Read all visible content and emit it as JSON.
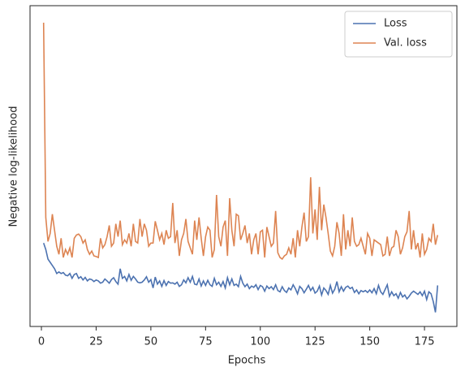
{
  "chart_data": {
    "type": "line",
    "xlabel": "Epochs",
    "ylabel": "Negative log-likelihood",
    "x": [
      1,
      2,
      3,
      4,
      5,
      6,
      7,
      8,
      9,
      10,
      11,
      12,
      13,
      14,
      15,
      16,
      17,
      18,
      19,
      20,
      21,
      22,
      23,
      24,
      25,
      26,
      27,
      28,
      29,
      30,
      31,
      32,
      33,
      34,
      35,
      36,
      37,
      38,
      39,
      40,
      41,
      42,
      43,
      44,
      45,
      46,
      47,
      48,
      49,
      50,
      51,
      52,
      53,
      54,
      55,
      56,
      57,
      58,
      59,
      60,
      61,
      62,
      63,
      64,
      65,
      66,
      67,
      68,
      69,
      70,
      71,
      72,
      73,
      74,
      75,
      76,
      77,
      78,
      79,
      80,
      81,
      82,
      83,
      84,
      85,
      86,
      87,
      88,
      89,
      90,
      91,
      92,
      93,
      94,
      95,
      96,
      97,
      98,
      99,
      100,
      101,
      102,
      103,
      104,
      105,
      106,
      107,
      108,
      109,
      110,
      111,
      112,
      113,
      114,
      115,
      116,
      117,
      118,
      119,
      120,
      121,
      122,
      123,
      124,
      125,
      126,
      127,
      128,
      129,
      130,
      131,
      132,
      133,
      134,
      135,
      136,
      137,
      138,
      139,
      140,
      141,
      142,
      143,
      144,
      145,
      146,
      147,
      148,
      149,
      150,
      151,
      152,
      153,
      154,
      155,
      156,
      157,
      158,
      159,
      160,
      161,
      162,
      163,
      164,
      165,
      166,
      167,
      168,
      169,
      170,
      171,
      172,
      173,
      174,
      175,
      176,
      177,
      178,
      179,
      180,
      181
    ],
    "series": [
      {
        "name": "Loss",
        "color": "#4c72b0",
        "values": [
          26,
          24,
          21,
          20,
          19,
          18,
          16.5,
          17,
          16.5,
          16.8,
          16,
          15.8,
          16.5,
          15,
          16.2,
          16.5,
          15,
          15.5,
          14.5,
          15.3,
          14.2,
          14.8,
          14.6,
          14,
          14.5,
          14.2,
          13.5,
          13.8,
          14.8,
          14.2,
          13.5,
          14.6,
          15.2,
          14,
          13.2,
          18,
          15,
          15.6,
          14.2,
          16.2,
          14.4,
          15.6,
          14.8,
          13.8,
          13.6,
          13.8,
          14.5,
          15.5,
          13.8,
          14.6,
          12,
          15.4,
          13.2,
          14.2,
          12.5,
          14.3,
          12.8,
          14,
          13.5,
          13.6,
          13.2,
          13.8,
          12.5,
          13,
          14.5,
          13.6,
          15.2,
          13.8,
          15.6,
          13.2,
          13,
          14.8,
          12.6,
          14.2,
          12.8,
          14.4,
          13,
          12.5,
          15,
          13,
          13.8,
          12.5,
          14,
          12,
          15.2,
          13,
          14.8,
          12.8,
          13.2,
          12.4,
          15.6,
          13.5,
          12.4,
          13.2,
          11.8,
          12.6,
          12.2,
          13,
          11.5,
          12.8,
          12.4,
          11,
          12.6,
          11.8,
          12.4,
          11.5,
          13,
          11.2,
          10.8,
          12.4,
          11.2,
          10.6,
          12,
          11.4,
          13,
          11.8,
          10.2,
          12.5,
          11.8,
          10.5,
          11.6,
          12.8,
          11.2,
          12.2,
          10.4,
          11,
          12.6,
          9.8,
          12,
          11.2,
          10,
          12.8,
          10.4,
          11.6,
          14,
          10.8,
          12.4,
          11,
          12.2,
          12.6,
          11.8,
          12.2,
          10.6,
          11.4,
          10.2,
          11.2,
          10.8,
          11.2,
          10.6,
          11.4,
          10.5,
          11.8,
          10.2,
          12.8,
          10.8,
          10,
          11.5,
          13,
          9.4,
          10.8,
          9.6,
          10.2,
          8.8,
          10.6,
          9.2,
          9.8,
          8.6,
          9.4,
          10.4,
          11,
          10.5,
          10,
          10.8,
          9.6,
          11,
          8.4,
          10.8,
          10.2,
          7.8,
          4.4,
          12.8
        ]
      },
      {
        "name": "Val. loss",
        "color": "#dd8452",
        "values": [
          94.7,
          34,
          26.5,
          29,
          35,
          30,
          25,
          22.5,
          27.5,
          21.5,
          24,
          22.5,
          24.5,
          21.5,
          27.5,
          28.5,
          28.8,
          28,
          26,
          27,
          24,
          22.5,
          23.5,
          22,
          21.8,
          21.5,
          27.5,
          24.5,
          25.5,
          28,
          31.5,
          25,
          26,
          32,
          28,
          33,
          25.5,
          27,
          26,
          29,
          25,
          32,
          26.5,
          26,
          33.5,
          28,
          32,
          30,
          25,
          26,
          26,
          32.8,
          30,
          27,
          29,
          25.5,
          30,
          27.5,
          28,
          38.5,
          26,
          30,
          22,
          27,
          29,
          33.5,
          26.5,
          24.5,
          22.5,
          33,
          27,
          34,
          27.5,
          22,
          28,
          31,
          30,
          21.5,
          24,
          41,
          28,
          25,
          31,
          33,
          22,
          40,
          30,
          25,
          35,
          34.5,
          27,
          29,
          31.5,
          26,
          29,
          22.5,
          27,
          29,
          22.5,
          29.5,
          30,
          21.5,
          31,
          28,
          25,
          26,
          36,
          23,
          21.5,
          21,
          22,
          22.5,
          24.5,
          22.5,
          27.5,
          21.5,
          30,
          25,
          31,
          35.5,
          26.5,
          28,
          46.5,
          29,
          36.5,
          27,
          43.5,
          30,
          38,
          34,
          29,
          23.5,
          22,
          25,
          32.5,
          29,
          22,
          35,
          24,
          30,
          25,
          34,
          26.5,
          25,
          25.5,
          27.5,
          25,
          22.5,
          29,
          27.5,
          22,
          27,
          26.5,
          26,
          25.5,
          22,
          22.5,
          28,
          22,
          24.5,
          25,
          30,
          28,
          22.5,
          24.5,
          28,
          29.5,
          36,
          24,
          30,
          24,
          26,
          21.5,
          29,
          22.5,
          24,
          27.5,
          26.5,
          32,
          25.5,
          28.5
        ]
      }
    ],
    "xlim": [
      -5.2,
      189.8
    ],
    "xticks": [
      0,
      25,
      50,
      75,
      100,
      125,
      150,
      175
    ],
    "ylim": [
      0,
      100
    ],
    "legend": "upper right"
  }
}
